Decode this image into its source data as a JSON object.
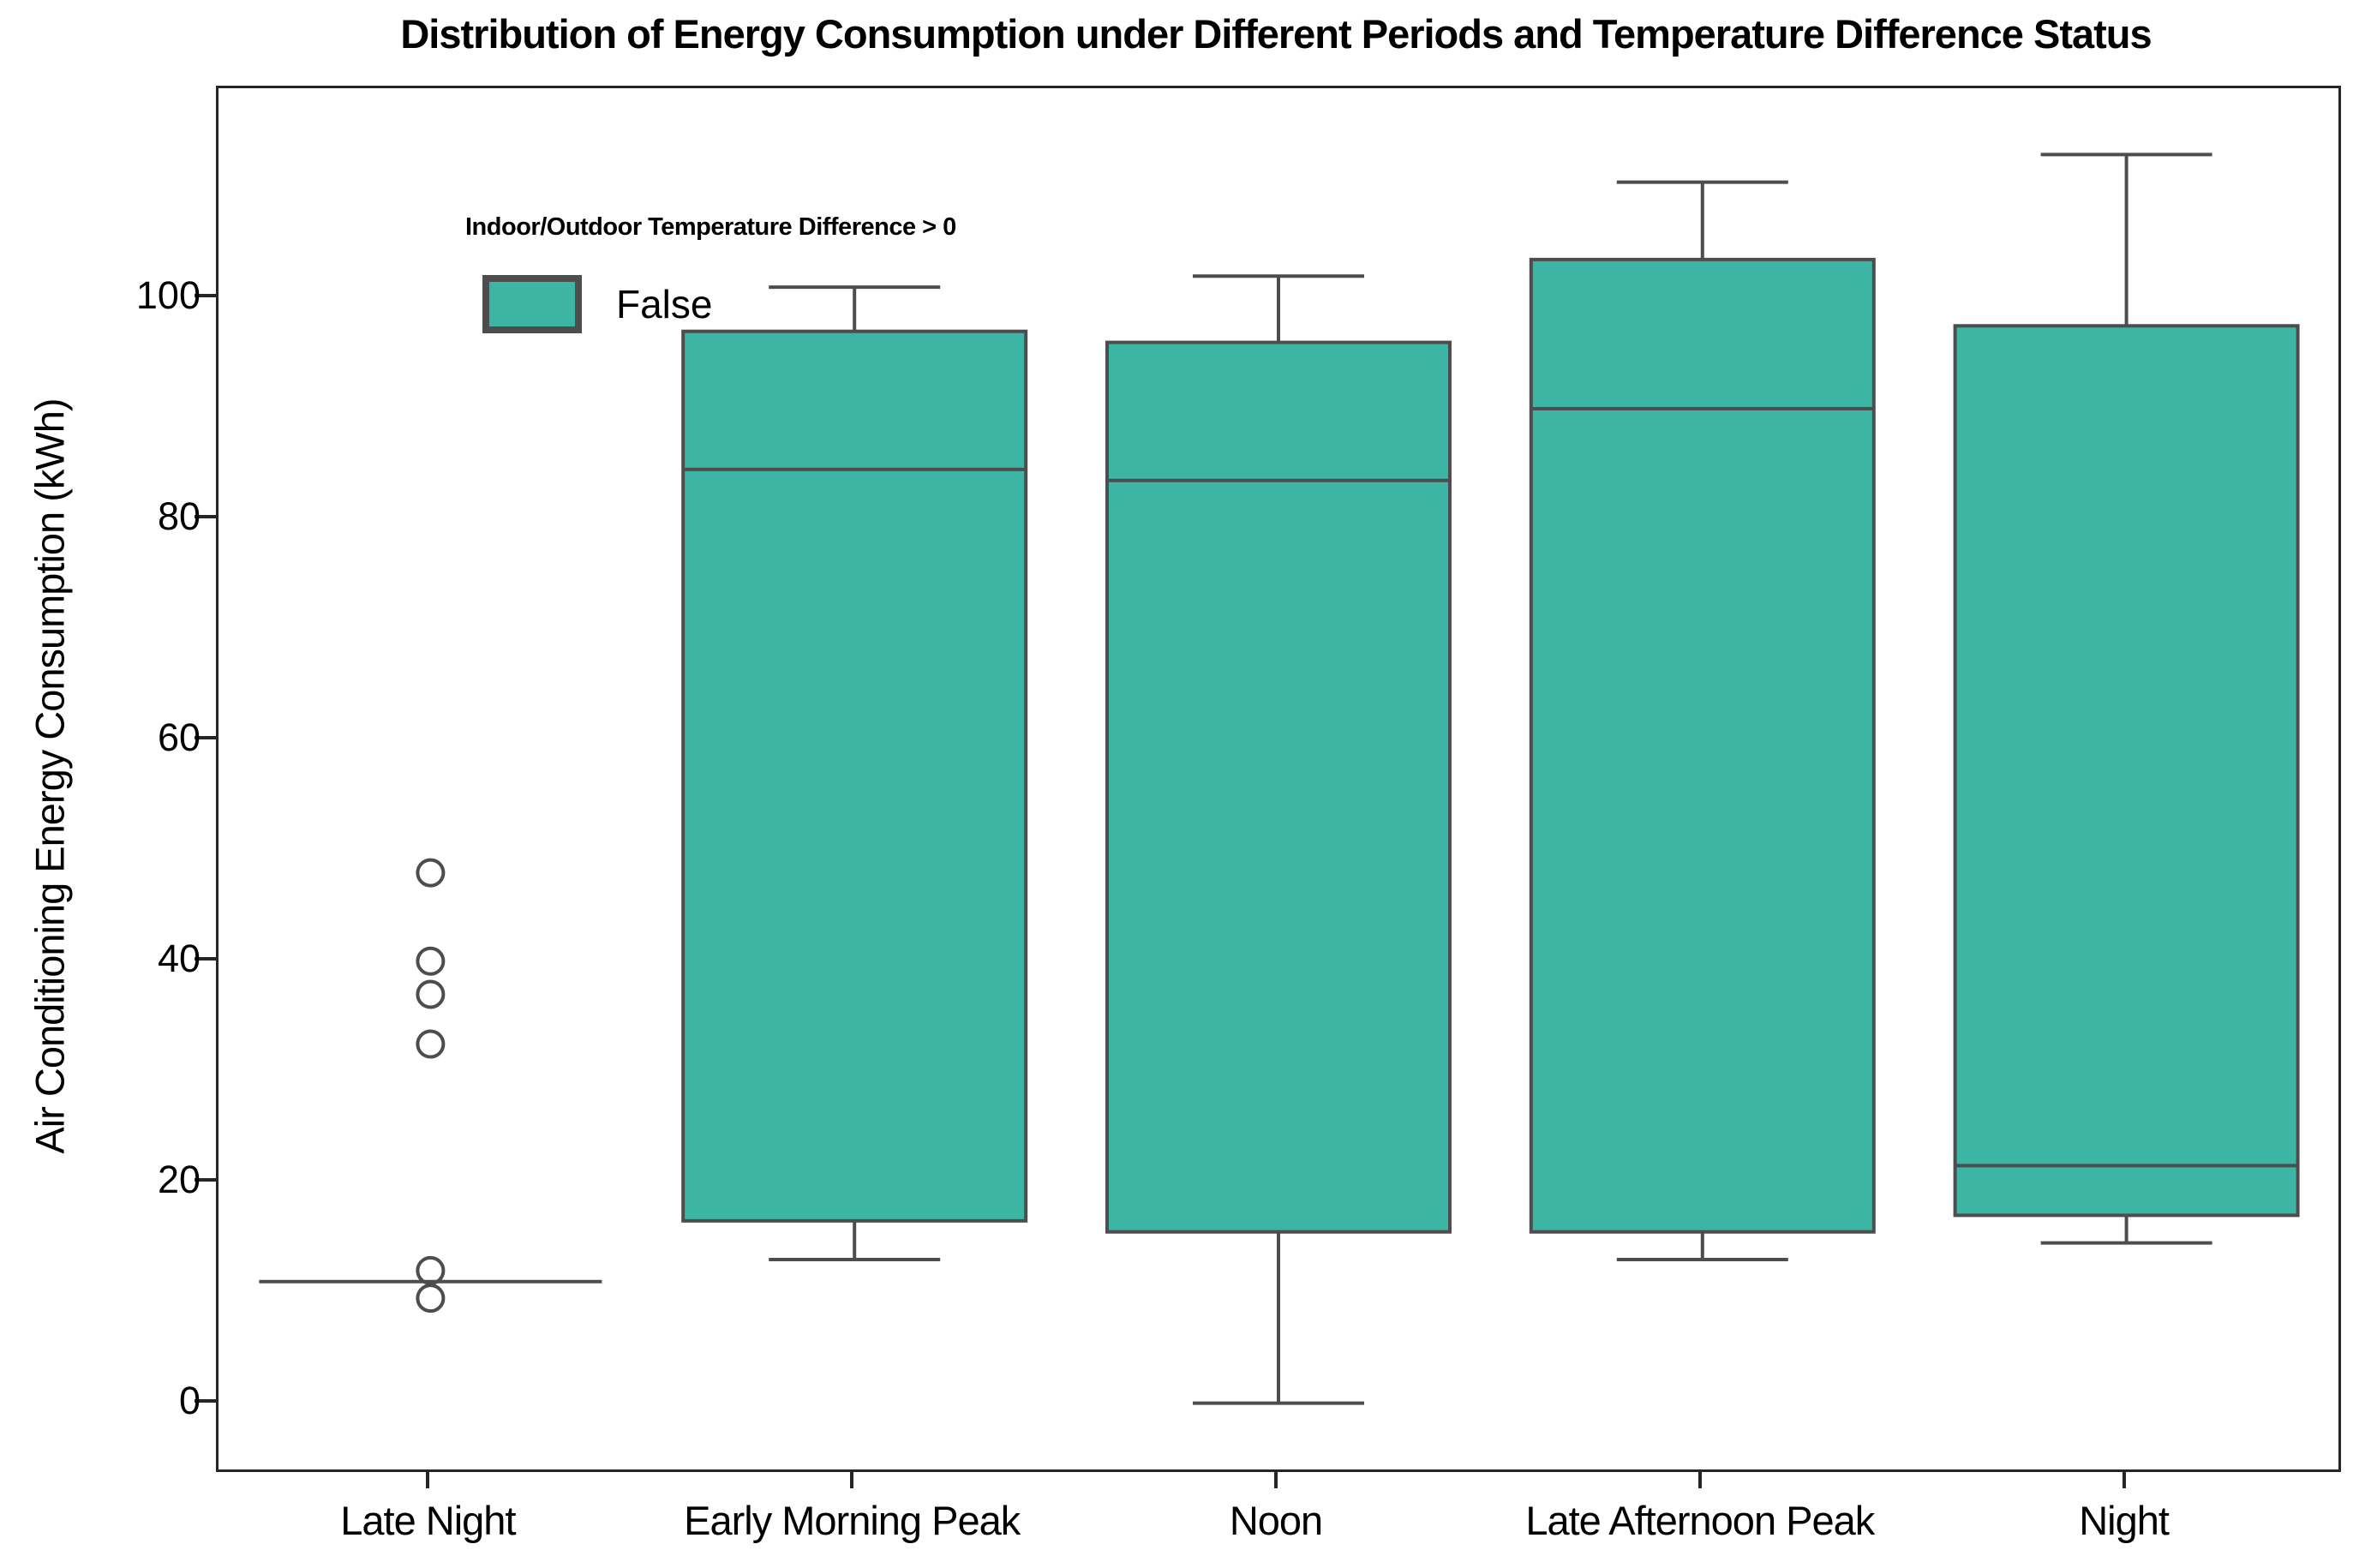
{
  "title": "Distribution of Energy Consumption under Different Periods and Temperature Difference Status",
  "axes": {
    "ylabel": "Air Conditioning Energy Consumption (kWh)",
    "yticks": [
      0,
      20,
      40,
      60,
      80,
      100
    ],
    "ylim": [
      -6,
      119
    ]
  },
  "legend": {
    "title": "Indoor/Outdoor Temperature Difference > 0",
    "items": [
      {
        "label": "False",
        "color": "#3db5a4"
      }
    ]
  },
  "colors": {
    "box_fill": "#3db5a4",
    "box_line": "#4d4d4d",
    "spine": "#262626",
    "text": "#000000"
  },
  "chart_data": {
    "type": "box",
    "title": "Distribution of Energy Consumption under Different Periods and Temperature Difference Status",
    "xlabel": "",
    "ylabel": "Air Conditioning Energy Consumption (kWh)",
    "ylim": [
      -6,
      119
    ],
    "yticks": [
      0,
      20,
      40,
      60,
      80,
      100
    ],
    "grid": false,
    "legend_position": "upper left",
    "legend_title": "Indoor/Outdoor Temperature Difference > 0",
    "categories": [
      "Late Night",
      "Early Morning Peak",
      "Noon",
      "Late Afternoon Peak",
      "Night"
    ],
    "series": [
      {
        "name": "False",
        "boxes": [
          {
            "category": "Late Night",
            "whisker_low": 11,
            "q1": 11,
            "median": 11,
            "q3": 11,
            "whisker_high": 11,
            "outliers": [
              48,
              40,
              37,
              32.5,
              12,
              9.5
            ]
          },
          {
            "category": "Early Morning Peak",
            "whisker_low": 13,
            "q1": 16.5,
            "median": 84.5,
            "q3": 97,
            "whisker_high": 101,
            "outliers": []
          },
          {
            "category": "Noon",
            "whisker_low": 0,
            "q1": 15.5,
            "median": 83.5,
            "q3": 96,
            "whisker_high": 102,
            "outliers": []
          },
          {
            "category": "Late Afternoon Peak",
            "whisker_low": 13,
            "q1": 15.5,
            "median": 90,
            "q3": 103.5,
            "whisker_high": 110.5,
            "outliers": []
          },
          {
            "category": "Night",
            "whisker_low": 14.5,
            "q1": 17,
            "median": 21.5,
            "q3": 97.5,
            "whisker_high": 113,
            "outliers": []
          }
        ]
      }
    ]
  }
}
